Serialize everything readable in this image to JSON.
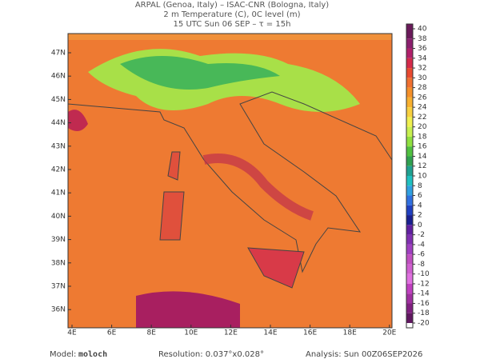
{
  "header": {
    "line1": "ARPAL (Genoa, Italy)  –  ISAC-CNR (Bologna, Italy)",
    "line2": "2 m Temperature (C), 0C level (m)",
    "line3": "15 UTC Sun 06 SEP  –  τ = 15h"
  },
  "map": {
    "lat_labels": [
      "47N",
      "46N",
      "45N",
      "44N",
      "43N",
      "42N",
      "41N",
      "40N",
      "39N",
      "38N",
      "37N",
      "36N"
    ],
    "lon_labels": [
      "4E",
      "6E",
      "8E",
      "10E",
      "12E",
      "14E",
      "16E",
      "18E",
      "20E"
    ]
  },
  "colorbar": {
    "ticks": [
      40,
      38,
      36,
      34,
      32,
      30,
      28,
      26,
      24,
      22,
      20,
      18,
      16,
      14,
      12,
      10,
      8,
      6,
      4,
      2,
      0,
      -2,
      -4,
      -6,
      -8,
      -10,
      -12,
      -14,
      -16,
      -18,
      -20
    ],
    "colors": [
      "#6a1a5a",
      "#8b1f6e",
      "#b0206a",
      "#d42a4a",
      "#e84a30",
      "#f07030",
      "#f5902a",
      "#f8b030",
      "#f8d040",
      "#f0f050",
      "#c8f050",
      "#90e040",
      "#50c040",
      "#30a050",
      "#20a090",
      "#20c0c0",
      "#30a0e0",
      "#3070e0",
      "#2040c0",
      "#1a2090",
      "#6020a0",
      "#8030b0",
      "#a040c0",
      "#c050c0",
      "#d060d0",
      "#e070e0",
      "#c040c0",
      "#a030a0",
      "#802080",
      "#601860"
    ]
  },
  "footer": {
    "model_label": "Model:",
    "model": "moloch",
    "resolution": "Resolution: 0.037°x0.028°",
    "analysis": "Analysis: Sun 00Z06SEP2026"
  }
}
